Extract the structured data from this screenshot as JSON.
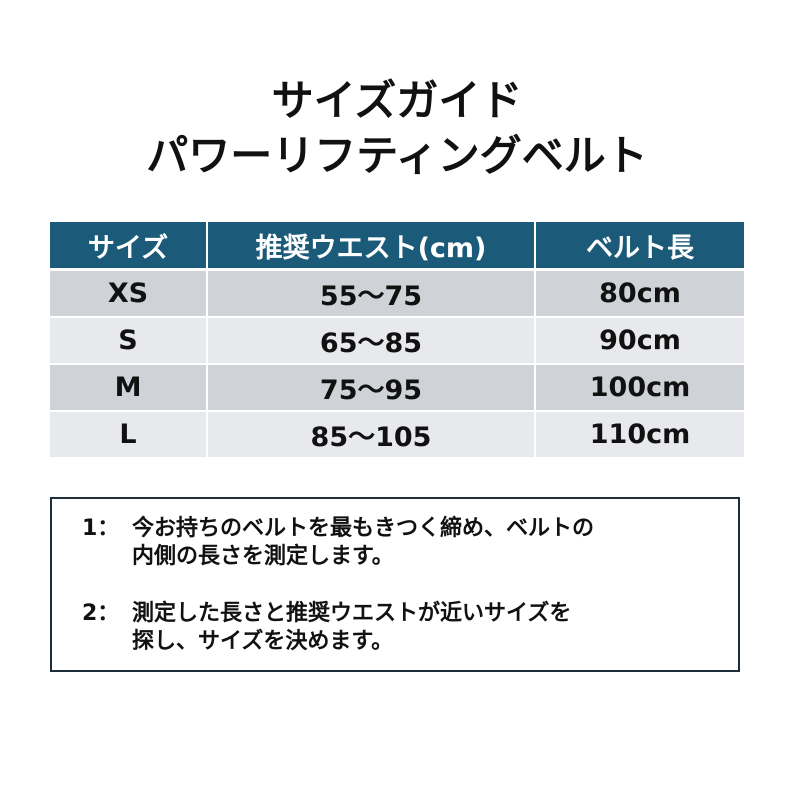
{
  "title": {
    "line1": "サイズガイド",
    "line2": "パワーリフティングベルト"
  },
  "colors": {
    "header_bg": "#1b5a78",
    "row_dark": "#cfd3d8",
    "row_light": "#e7e9ec",
    "box_border": "#1d2d3a"
  },
  "table": {
    "headers": [
      "サイズ",
      "推奨ウエスト(cm)",
      "ベルト長"
    ],
    "rows": [
      [
        "XS",
        "55〜75",
        "80cm"
      ],
      [
        "S",
        "65〜85",
        "90cm"
      ],
      [
        "M",
        "75〜95",
        "100cm"
      ],
      [
        "L",
        "85〜105",
        "110cm"
      ]
    ]
  },
  "notes": [
    {
      "num": "1：",
      "line1": "今お持ちのベルトを最もきつく締め、ベルトの",
      "line2": "内側の長さを測定します。"
    },
    {
      "num": "2：",
      "line1": "測定した長さと推奨ウエストが近いサイズを",
      "line2": "探し、サイズを決めます。"
    }
  ]
}
